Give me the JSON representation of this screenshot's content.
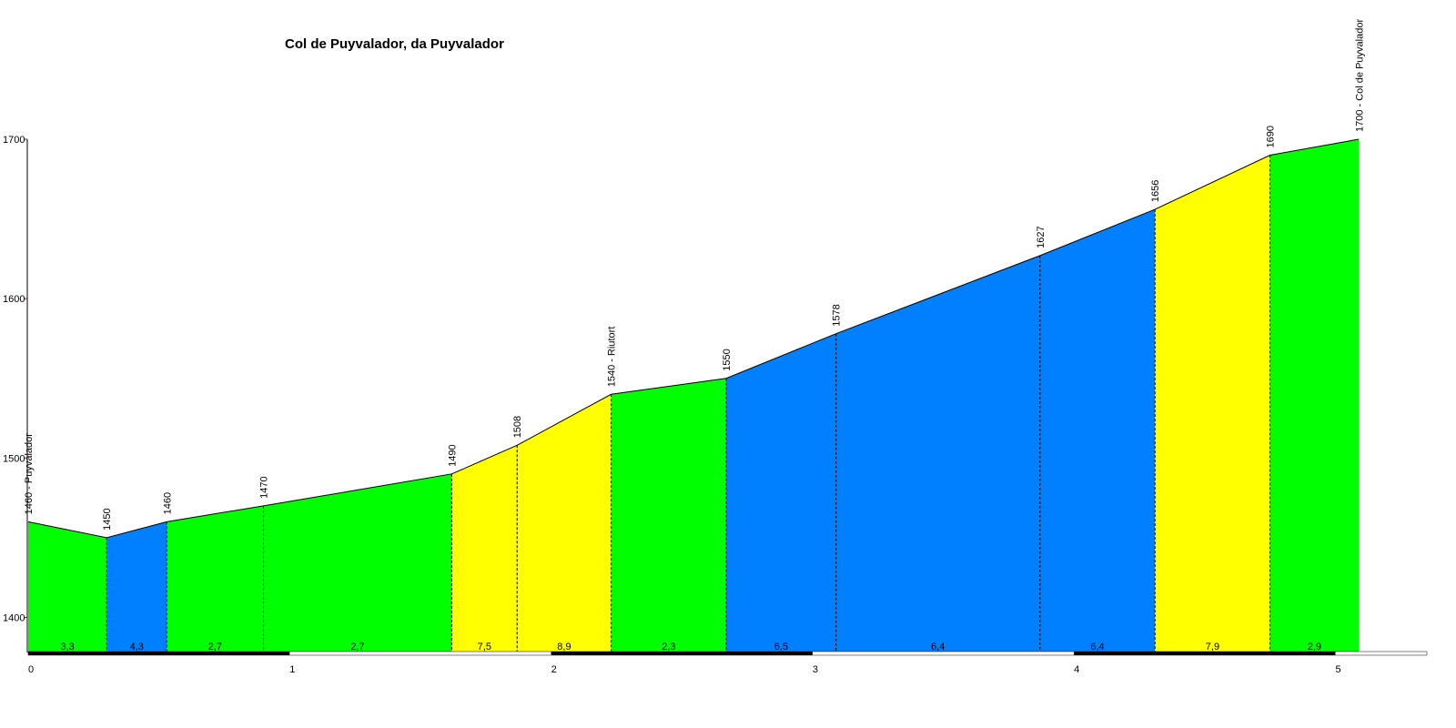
{
  "chart_data": {
    "type": "profile",
    "title": "Col de Puyvalador, da Puyvalador",
    "x": [
      0,
      0.3,
      0.53,
      0.9,
      1.62,
      1.87,
      2.23,
      2.67,
      3.09,
      3.87,
      4.31,
      4.75,
      5.09
    ],
    "values": [
      1460,
      1450,
      1460,
      1470,
      1490,
      1508,
      1540,
      1550,
      1578,
      1627,
      1656,
      1690,
      1700
    ],
    "point_labels": [
      "1460 - Puyvalador",
      "1450",
      "1460",
      "1470",
      "1490",
      "1508",
      "1540 - Riutort",
      "1550",
      "1578",
      "1627",
      "1656",
      "1690",
      "1700 - Col de Puyvalador"
    ],
    "segment_labels": [
      "3,3",
      "4,3",
      "2,7",
      "2,7",
      "7,5",
      "8,9",
      "2,3",
      "6,5",
      "6,4",
      "6,4",
      "7,9",
      "2,9"
    ],
    "segment_colors": [
      "#00ff00",
      "#0080ff",
      "#00ff00",
      "#00ff00",
      "#ffff00",
      "#ffff00",
      "#00ff00",
      "#0080ff",
      "#0080ff",
      "#0080ff",
      "#ffff00",
      "#00ff00"
    ],
    "xlim": [
      0,
      5.35
    ],
    "xticks": [
      0,
      1,
      2,
      3,
      4,
      5
    ],
    "ylim": [
      1378,
      1700
    ],
    "yticks": [
      1400,
      1500,
      1600,
      1700
    ]
  }
}
